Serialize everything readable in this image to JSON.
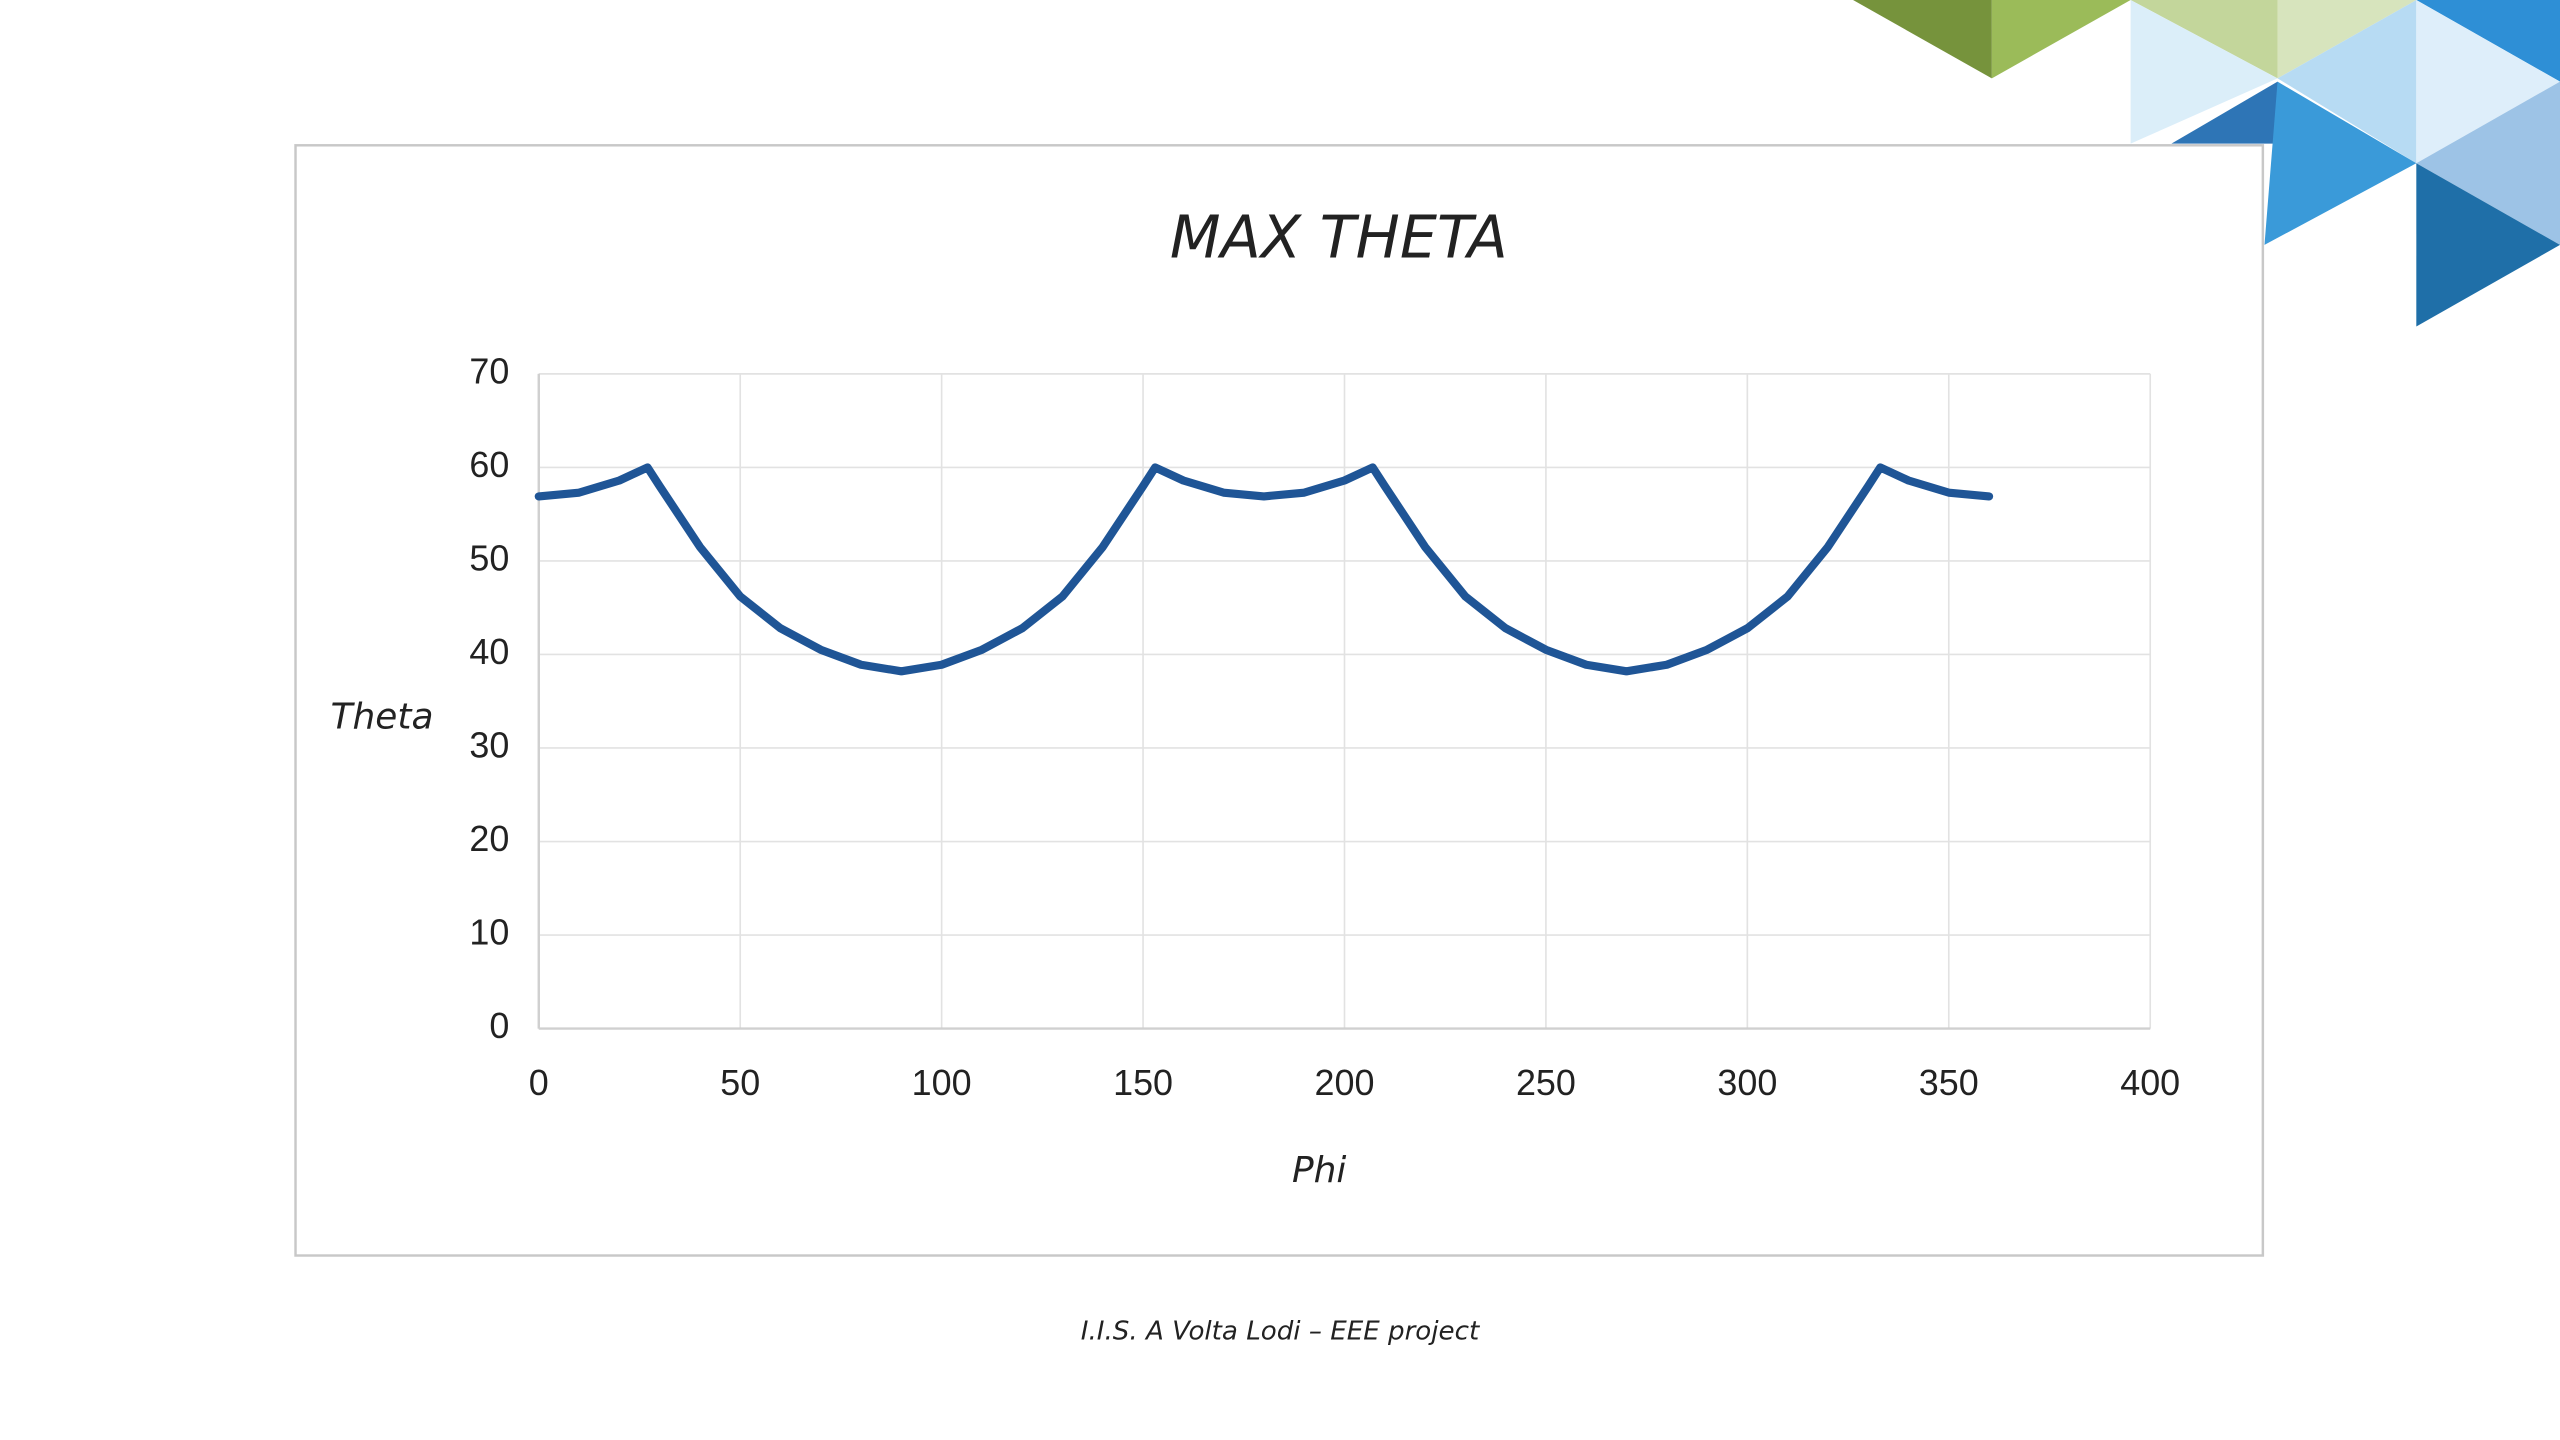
{
  "chart_data": {
    "type": "line",
    "title": "MAX THETA",
    "x_label": "Phi",
    "y_label": "Theta",
    "x": [
      0,
      10,
      20,
      27,
      30,
      40,
      50,
      60,
      70,
      80,
      90,
      100,
      110,
      120,
      130,
      140,
      150,
      153,
      160,
      170,
      180,
      190,
      200,
      207,
      210,
      220,
      230,
      240,
      250,
      260,
      270,
      280,
      290,
      300,
      310,
      320,
      330,
      333,
      340,
      350,
      360
    ],
    "values": [
      56.9,
      57.3,
      58.6,
      60,
      58,
      51.5,
      46.2,
      42.8,
      40.5,
      38.9,
      38.2,
      38.9,
      40.5,
      42.8,
      46.2,
      51.5,
      58,
      60,
      58.6,
      57.3,
      56.9,
      57.3,
      58.6,
      60,
      58,
      51.5,
      46.2,
      42.8,
      40.5,
      38.9,
      38.2,
      38.9,
      40.5,
      42.8,
      46.2,
      51.5,
      58,
      60,
      58.6,
      57.3,
      56.9
    ],
    "color": "#1f5596",
    "xlim": [
      0,
      400
    ],
    "xticks": [
      0,
      50,
      100,
      150,
      200,
      250,
      300,
      350,
      400
    ],
    "ylim": [
      0,
      70
    ],
    "yticks": [
      0,
      10,
      20,
      30,
      40,
      50,
      60,
      70
    ],
    "grid": true
  },
  "footer": "I.I.S. A Volta Lodi – EEE project"
}
